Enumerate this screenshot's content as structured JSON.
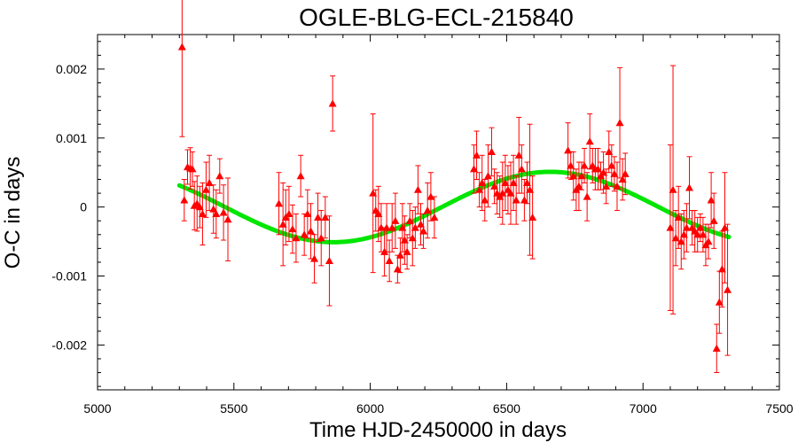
{
  "chart_data": {
    "type": "scatter",
    "title": "OGLE-BLG-ECL-215840",
    "xlabel": "Time HJD-2450000 in days",
    "ylabel": "O-C in days",
    "xlim": [
      5000,
      7500
    ],
    "ylim": [
      -0.00265,
      0.0025
    ],
    "x_ticks": [
      5000,
      5500,
      6000,
      6500,
      7000,
      7500
    ],
    "x_tick_labels": [
      "5000",
      "5500",
      "6000",
      "6500",
      "7000",
      "7500"
    ],
    "y_ticks": [
      0.002,
      0.001,
      0,
      -0.001,
      -0.002
    ],
    "y_tick_labels": [
      "0.002",
      "0.001",
      "0",
      "-0.001",
      "-0.002"
    ],
    "grid": false,
    "colors": {
      "points": "#ff0000",
      "fit": "#00e600",
      "axis": "#000000"
    },
    "series": [
      {
        "marker": "triangle",
        "points": [
          {
            "x": 5310,
            "y": 0.00232,
            "err": 0.0013
          },
          {
            "x": 5318,
            "y": 0.0001,
            "err": 0.0003
          },
          {
            "x": 5330,
            "y": 0.00058,
            "err": 0.00025
          },
          {
            "x": 5340,
            "y": 0.00056,
            "err": 0.0003
          },
          {
            "x": 5348,
            "y": 0.00055,
            "err": 0.00025
          },
          {
            "x": 5355,
            "y": 2e-05,
            "err": 0.00035
          },
          {
            "x": 5365,
            "y": 5e-05,
            "err": 0.0004
          },
          {
            "x": 5375,
            "y": 0.0,
            "err": 0.0003
          },
          {
            "x": 5385,
            "y": -0.0001,
            "err": 0.00045
          },
          {
            "x": 5398,
            "y": 0.00025,
            "err": 0.0004
          },
          {
            "x": 5410,
            "y": 0.00035,
            "err": 0.0004
          },
          {
            "x": 5425,
            "y": -3e-05,
            "err": 0.00035
          },
          {
            "x": 5435,
            "y": -0.0001,
            "err": 0.00035
          },
          {
            "x": 5448,
            "y": 0.00045,
            "err": 0.00025
          },
          {
            "x": 5462,
            "y": -8e-05,
            "err": 0.0004
          },
          {
            "x": 5478,
            "y": -0.00018,
            "err": 0.0006
          },
          {
            "x": 5665,
            "y": 5e-05,
            "err": 0.00045
          },
          {
            "x": 5680,
            "y": -0.00025,
            "err": 0.0006
          },
          {
            "x": 5690,
            "y": -0.00015,
            "err": 0.0004
          },
          {
            "x": 5702,
            "y": -0.0001,
            "err": 0.0004
          },
          {
            "x": 5715,
            "y": -0.00032,
            "err": 0.00035
          },
          {
            "x": 5728,
            "y": -0.00045,
            "err": 0.00035
          },
          {
            "x": 5745,
            "y": 0.00045,
            "err": 0.0003
          },
          {
            "x": 5758,
            "y": -0.0004,
            "err": 0.0003
          },
          {
            "x": 5770,
            "y": -0.0001,
            "err": 0.00035
          },
          {
            "x": 5782,
            "y": -0.00035,
            "err": 0.0004
          },
          {
            "x": 5795,
            "y": -0.00075,
            "err": 0.00035
          },
          {
            "x": 5808,
            "y": -0.00015,
            "err": 0.00035
          },
          {
            "x": 5820,
            "y": -0.00045,
            "err": 0.0004
          },
          {
            "x": 5835,
            "y": -0.00015,
            "err": 0.0003
          },
          {
            "x": 5850,
            "y": -0.00078,
            "err": 0.00065
          },
          {
            "x": 5862,
            "y": 0.0015,
            "err": 0.0004
          },
          {
            "x": 6010,
            "y": 0.0002,
            "err": 0.00115
          },
          {
            "x": 6020,
            "y": -5e-05,
            "err": 0.0003
          },
          {
            "x": 6030,
            "y": -0.0001,
            "err": 0.0004
          },
          {
            "x": 6040,
            "y": -0.0003,
            "err": 0.00035
          },
          {
            "x": 6052,
            "y": -0.00065,
            "err": 0.00035
          },
          {
            "x": 6060,
            "y": -0.0003,
            "err": 0.00035
          },
          {
            "x": 6070,
            "y": -0.00078,
            "err": 0.0003
          },
          {
            "x": 6080,
            "y": -0.0003,
            "err": 0.00035
          },
          {
            "x": 6092,
            "y": -0.0002,
            "err": 0.0004
          },
          {
            "x": 6100,
            "y": -0.0009,
            "err": 0.0002
          },
          {
            "x": 6110,
            "y": -0.0007,
            "err": 0.00025
          },
          {
            "x": 6118,
            "y": -0.0003,
            "err": 0.00035
          },
          {
            "x": 6126,
            "y": -0.00048,
            "err": 0.00035
          },
          {
            "x": 6135,
            "y": -0.00065,
            "err": 0.00025
          },
          {
            "x": 6145,
            "y": -0.0002,
            "err": 0.00025
          },
          {
            "x": 6155,
            "y": -0.00045,
            "err": 0.0004
          },
          {
            "x": 6165,
            "y": -0.0003,
            "err": 0.0003
          },
          {
            "x": 6175,
            "y": 0.00025,
            "err": 0.00035
          },
          {
            "x": 6185,
            "y": -0.00025,
            "err": 0.0003
          },
          {
            "x": 6195,
            "y": -0.00035,
            "err": 0.00025
          },
          {
            "x": 6210,
            "y": -5e-05,
            "err": 0.0004
          },
          {
            "x": 6222,
            "y": 0.00015,
            "err": 0.00035
          },
          {
            "x": 6235,
            "y": -0.00015,
            "err": 0.0003
          },
          {
            "x": 6380,
            "y": 0.00055,
            "err": 0.00035
          },
          {
            "x": 6390,
            "y": 0.00075,
            "err": 0.00035
          },
          {
            "x": 6400,
            "y": 0.00025,
            "err": 0.00025
          },
          {
            "x": 6410,
            "y": 0.00035,
            "err": 0.0004
          },
          {
            "x": 6420,
            "y": 0.0001,
            "err": 0.0003
          },
          {
            "x": 6432,
            "y": 0.00045,
            "err": 0.00045
          },
          {
            "x": 6445,
            "y": 0.0008,
            "err": 0.00035
          },
          {
            "x": 6455,
            "y": 0.0003,
            "err": 0.00025
          },
          {
            "x": 6465,
            "y": 0.0002,
            "err": 0.0003
          },
          {
            "x": 6475,
            "y": 0.00015,
            "err": 0.0003
          },
          {
            "x": 6485,
            "y": 0.0002,
            "err": 0.00045
          },
          {
            "x": 6495,
            "y": 0.00035,
            "err": 0.0004
          },
          {
            "x": 6505,
            "y": 0.00025,
            "err": 0.00035
          },
          {
            "x": 6515,
            "y": 0.0002,
            "err": 0.00045
          },
          {
            "x": 6525,
            "y": 0.00035,
            "err": 0.0004
          },
          {
            "x": 6535,
            "y": 0.0001,
            "err": 0.00035
          },
          {
            "x": 6545,
            "y": 0.00075,
            "err": 0.00055
          },
          {
            "x": 6555,
            "y": 0.00055,
            "err": 0.00035
          },
          {
            "x": 6565,
            "y": 0.0001,
            "err": 0.0003
          },
          {
            "x": 6575,
            "y": 0.00035,
            "err": 0.0003
          },
          {
            "x": 6585,
            "y": 0.00025,
            "err": 0.00095
          },
          {
            "x": 6595,
            "y": -0.00015,
            "err": 0.0006
          },
          {
            "x": 6725,
            "y": 0.00082,
            "err": 0.0004
          },
          {
            "x": 6735,
            "y": 0.0006,
            "err": 0.0002
          },
          {
            "x": 6745,
            "y": 0.00045,
            "err": 0.00035
          },
          {
            "x": 6755,
            "y": 0.00025,
            "err": 0.0003
          },
          {
            "x": 6765,
            "y": 0.0003,
            "err": 0.00035
          },
          {
            "x": 6775,
            "y": 0.00045,
            "err": 0.0002
          },
          {
            "x": 6785,
            "y": 0.0006,
            "err": 0.00025
          },
          {
            "x": 6795,
            "y": 0.00015,
            "err": 0.00035
          },
          {
            "x": 6805,
            "y": 0.00095,
            "err": 0.0004
          },
          {
            "x": 6815,
            "y": 0.0006,
            "err": 0.00025
          },
          {
            "x": 6825,
            "y": 0.00055,
            "err": 0.0003
          },
          {
            "x": 6835,
            "y": 0.00055,
            "err": 0.0003
          },
          {
            "x": 6845,
            "y": 0.00045,
            "err": 0.0002
          },
          {
            "x": 6855,
            "y": 0.0005,
            "err": 0.0003
          },
          {
            "x": 6865,
            "y": 0.0003,
            "err": 0.00025
          },
          {
            "x": 6875,
            "y": 0.0008,
            "err": 0.0003
          },
          {
            "x": 6885,
            "y": 0.0006,
            "err": 0.0003
          },
          {
            "x": 6895,
            "y": 0.00048,
            "err": 0.00025
          },
          {
            "x": 6905,
            "y": 0.0003,
            "err": 0.00035
          },
          {
            "x": 6915,
            "y": 0.00122,
            "err": 0.0008
          },
          {
            "x": 6925,
            "y": 0.0004,
            "err": 0.0003
          },
          {
            "x": 6935,
            "y": 0.00048,
            "err": 0.0003
          },
          {
            "x": 7100,
            "y": -0.0003,
            "err": 0.0012
          },
          {
            "x": 7110,
            "y": 0.00025,
            "err": 0.0018
          },
          {
            "x": 7120,
            "y": -0.00045,
            "err": 0.0004
          },
          {
            "x": 7130,
            "y": -0.00015,
            "err": 0.00045
          },
          {
            "x": 7140,
            "y": -0.0005,
            "err": 0.0004
          },
          {
            "x": 7150,
            "y": -0.0004,
            "err": 0.00035
          },
          {
            "x": 7160,
            "y": -0.0003,
            "err": 0.00035
          },
          {
            "x": 7170,
            "y": 0.00028,
            "err": 0.00045
          },
          {
            "x": 7180,
            "y": -0.0003,
            "err": 0.00025
          },
          {
            "x": 7190,
            "y": -0.00035,
            "err": 0.0003
          },
          {
            "x": 7200,
            "y": -0.0004,
            "err": 0.00025
          },
          {
            "x": 7210,
            "y": -0.0003,
            "err": 0.0002
          },
          {
            "x": 7220,
            "y": -0.0004,
            "err": 0.00025
          },
          {
            "x": 7230,
            "y": -0.00055,
            "err": 0.0003
          },
          {
            "x": 7240,
            "y": -0.0005,
            "err": 0.00025
          },
          {
            "x": 7250,
            "y": 0.0001,
            "err": 0.0004
          },
          {
            "x": 7260,
            "y": -0.0002,
            "err": 0.0004
          },
          {
            "x": 7270,
            "y": -0.00205,
            "err": 0.00035
          },
          {
            "x": 7280,
            "y": -0.00138,
            "err": 0.00045
          },
          {
            "x": 7290,
            "y": -0.0009,
            "err": 0.00055
          },
          {
            "x": 7300,
            "y": -0.0003,
            "err": 0.0008
          },
          {
            "x": 7310,
            "y": -0.0012,
            "err": 0.00095
          }
        ]
      }
    ],
    "fit": {
      "type": "sinusoid",
      "x_start": 5300,
      "x_end": 7315,
      "amplitude": 0.00051,
      "period": 1590,
      "x_peak": 6660,
      "offset": 0.0
    }
  }
}
